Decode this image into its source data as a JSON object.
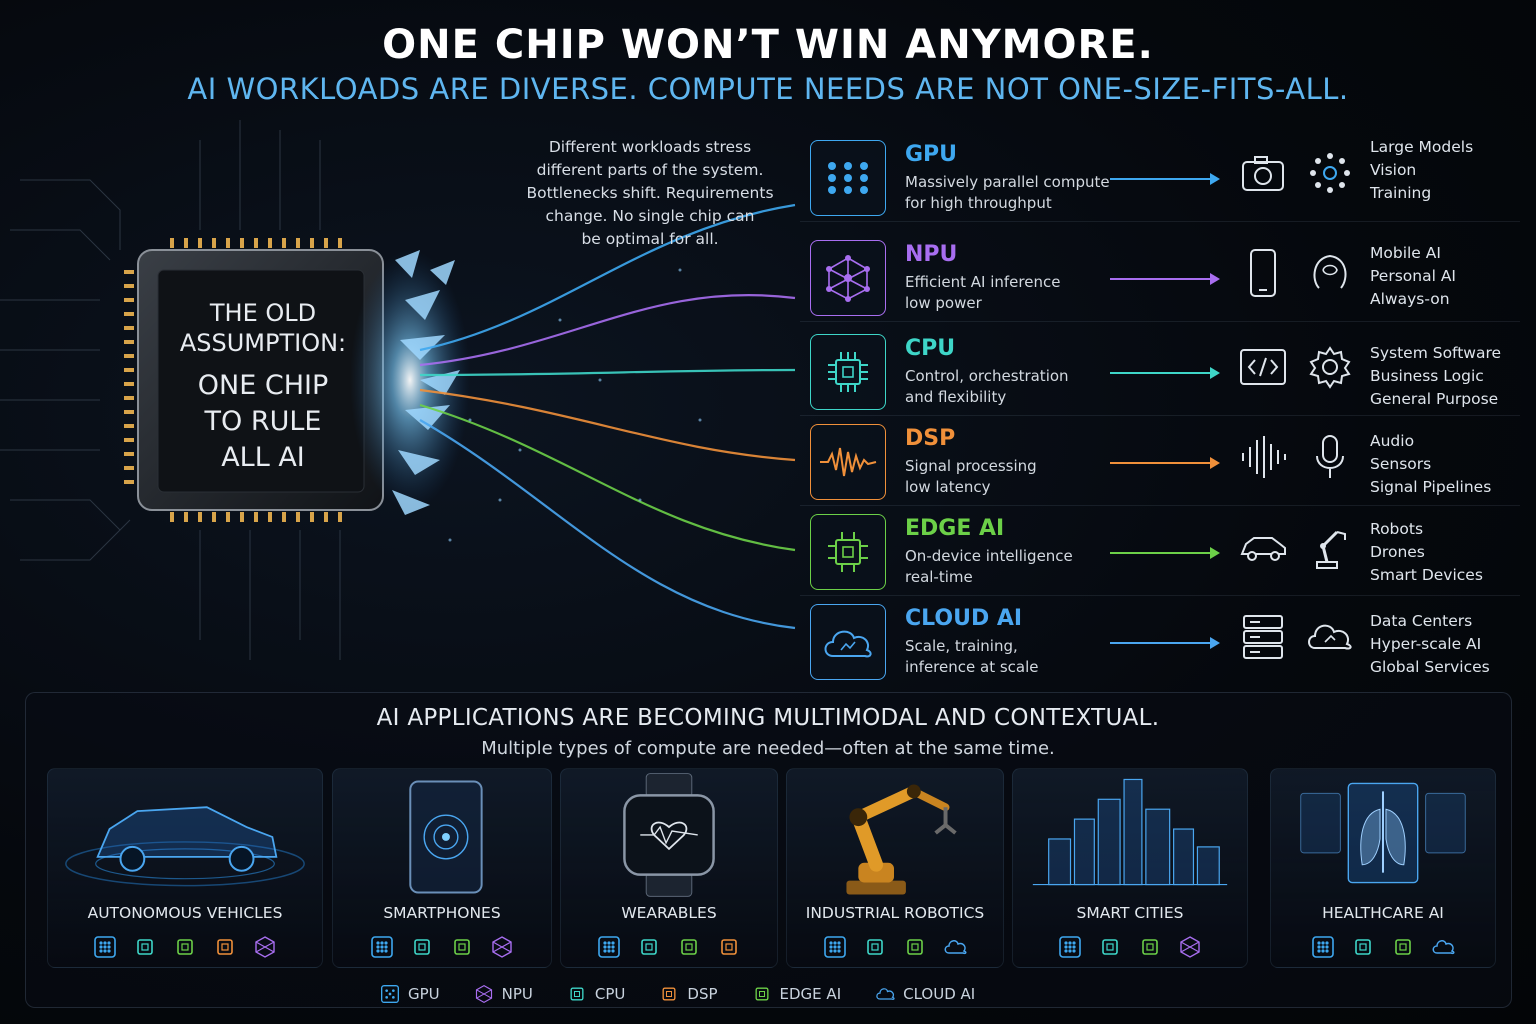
{
  "header": {
    "title": "ONE CHIP WON’T WIN ANYMORE.",
    "subtitle": "AI WORKLOADS ARE DIVERSE. COMPUTE NEEDS ARE NOT ONE-SIZE-FITS-ALL."
  },
  "chip": {
    "line1a": "THE OLD",
    "line1b": "ASSUMPTION:",
    "line2a": "ONE CHIP",
    "line2b": "TO RULE",
    "line2c": "ALL AI"
  },
  "intro": {
    "text1": "Different workloads stress",
    "text2": "different parts of the system.",
    "text3": "Bottlenecks shift. Requirements",
    "text4": "change. No single chip can",
    "text5": "be optimal for all."
  },
  "compute": [
    {
      "name": "GPU",
      "desc1": "Massively parallel compute",
      "desc2": "for high throughput",
      "color": "#3ea8f0",
      "icon": "grid-icon",
      "use_icons": [
        "camera-icon",
        "network-icon"
      ],
      "apps": [
        "Large Models",
        "Vision",
        "Training"
      ]
    },
    {
      "name": "NPU",
      "desc1": "Efficient AI inference",
      "desc2": "low power",
      "color": "#a86ef0",
      "icon": "neural-net-icon",
      "use_icons": [
        "smartphone-icon",
        "head-brain-icon"
      ],
      "apps": [
        "Mobile AI",
        "Personal AI",
        "Always-on"
      ]
    },
    {
      "name": "CPU",
      "desc1": "Control, orchestration",
      "desc2": "and flexibility",
      "color": "#3ed6c8",
      "icon": "processor-icon",
      "use_icons": [
        "code-icon",
        "gear-icon"
      ],
      "apps": [
        "System Software",
        "Business Logic",
        "General Purpose"
      ]
    },
    {
      "name": "DSP",
      "desc1": "Signal processing",
      "desc2": "low latency",
      "color": "#f0903a",
      "icon": "waveform-icon",
      "use_icons": [
        "audio-bars-icon",
        "microphone-icon"
      ],
      "apps": [
        "Audio",
        "Sensors",
        "Signal Pipelines"
      ]
    },
    {
      "name": "EDGE AI",
      "desc1": "On-device intelligence",
      "desc2": "real-time",
      "color": "#6cd048",
      "icon": "edge-chip-icon",
      "use_icons": [
        "car-icon",
        "robot-arm-icon"
      ],
      "apps": [
        "Robots",
        "Drones",
        "Smart Devices"
      ]
    },
    {
      "name": "CLOUD AI",
      "desc1": "Scale, training,",
      "desc2": "inference at scale",
      "color": "#4aa6f0",
      "icon": "cloud-icon",
      "use_icons": [
        "server-icon",
        "cloud-ai-icon"
      ],
      "apps": [
        "Data Centers",
        "Hyper-scale AI",
        "Global Services"
      ]
    }
  ],
  "panel": {
    "title": "AI APPLICATIONS ARE BECOMING MULTIMODAL AND CONTEXTUAL.",
    "subtitle": "Multiple types of compute are needed—often at the same time."
  },
  "applications": [
    {
      "label": "AUTONOMOUS VEHICLES"
    },
    {
      "label": "SMARTPHONES"
    },
    {
      "label": "WEARABLES"
    },
    {
      "label": "INDUSTRIAL ROBOTICS"
    },
    {
      "label": "SMART CITIES"
    },
    {
      "label": "HEALTHCARE AI"
    }
  ],
  "legend": [
    "GPU",
    "NPU",
    "CPU",
    "DSP",
    "EDGE AI",
    "CLOUD AI"
  ]
}
